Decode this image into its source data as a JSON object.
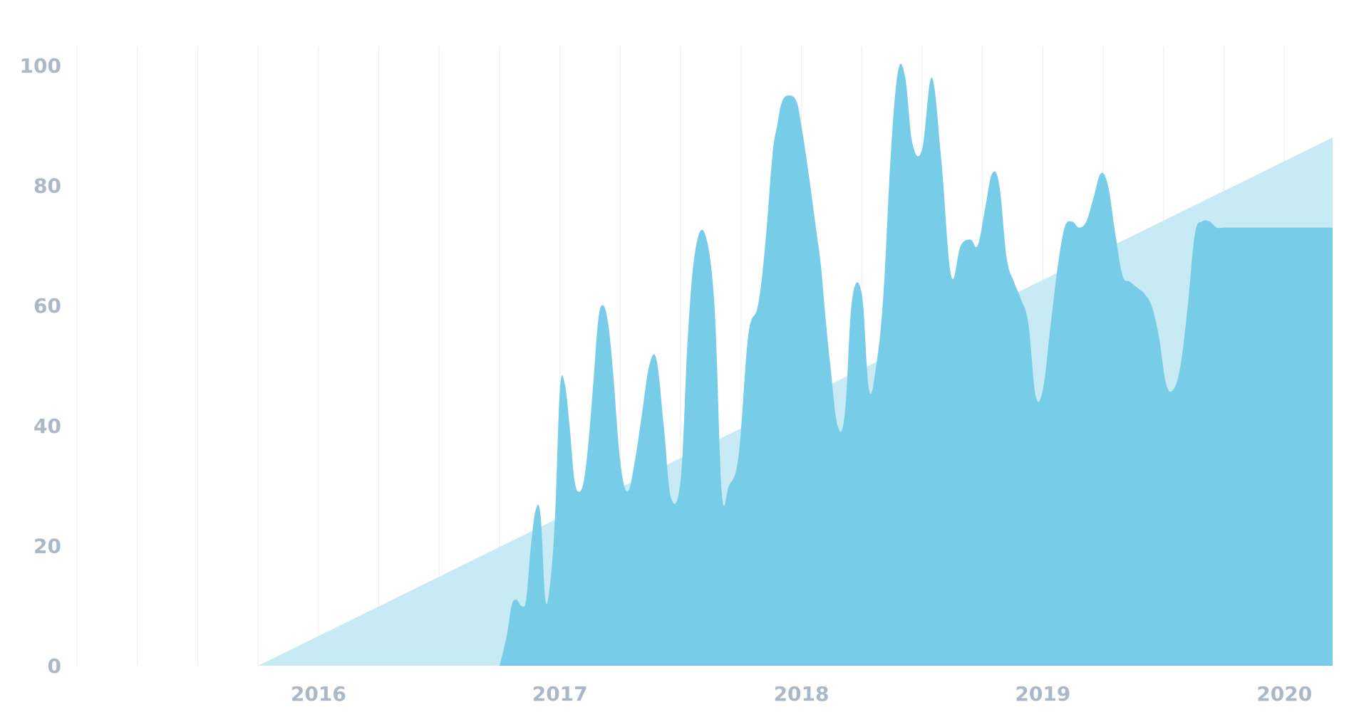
{
  "chart_data": {
    "type": "area",
    "title": "",
    "xlabel": "",
    "ylabel": "",
    "ylim": [
      0,
      100
    ],
    "y_ticks": [
      "0",
      "20",
      "40",
      "60",
      "80",
      "100"
    ],
    "x_ticks": [
      "2016",
      "2017",
      "2018",
      "2019",
      "2020"
    ],
    "grid": "vertical lines",
    "legend": "none",
    "colors": {
      "series_main": "#77cde8",
      "series_trend": "#c8eaf4",
      "grid": "#eeeeee",
      "tick_text": "#aab8c8"
    },
    "series": [
      {
        "x": [
          2015.75,
          2020.2
        ],
        "values": [
          0,
          88
        ]
      },
      {
        "x": [
          2016.75,
          2016.78,
          2016.8,
          2016.82,
          2016.84,
          2016.86,
          2016.88,
          2016.9,
          2016.92,
          2016.94,
          2016.96,
          2016.98,
          2017.0,
          2017.02,
          2017.04,
          2017.06,
          2017.08,
          2017.1,
          2017.12,
          2017.14,
          2017.16,
          2017.18,
          2017.2,
          2017.22,
          2017.25,
          2017.28,
          2017.31,
          2017.34,
          2017.37,
          2017.4,
          2017.43,
          2017.46,
          2017.5,
          2017.53,
          2017.56,
          2017.6,
          2017.64,
          2017.67,
          2017.7,
          2017.74,
          2017.78,
          2017.82,
          2017.85,
          2017.88,
          2017.9,
          2017.92,
          2017.95,
          2017.98,
          2018.0,
          2018.03,
          2018.06,
          2018.08,
          2018.1,
          2018.12,
          2018.15,
          2018.18,
          2018.21,
          2018.25,
          2018.28,
          2018.31,
          2018.34,
          2018.37,
          2018.4,
          2018.43,
          2018.46,
          2018.5,
          2018.54,
          2018.58,
          2018.62,
          2018.66,
          2018.7,
          2018.73,
          2018.76,
          2018.79,
          2018.82,
          2018.85,
          2018.88,
          2018.91,
          2018.94,
          2018.97,
          2019.0,
          2019.03,
          2019.06,
          2019.09,
          2019.12,
          2019.15,
          2019.18,
          2019.21,
          2019.24,
          2019.27,
          2019.3,
          2019.33,
          2019.36,
          2019.39,
          2019.42,
          2019.45,
          2019.48,
          2019.51,
          2019.54,
          2019.57,
          2019.6,
          2019.63,
          2019.66,
          2019.69,
          2019.72,
          2019.75,
          2019.79,
          2019.83,
          2019.87,
          2019.91,
          2019.94,
          2019.97,
          2020.0,
          2020.03,
          2020.06,
          2020.1,
          2020.15,
          2020.2
        ],
        "values": [
          0,
          5,
          10,
          11,
          10,
          11,
          20,
          26,
          25,
          11,
          14,
          25,
          46,
          47,
          40,
          31,
          29,
          31,
          38,
          48,
          58,
          60,
          57,
          49,
          34,
          29,
          34,
          42,
          50,
          51,
          40,
          28,
          31,
          55,
          69,
          72,
          60,
          29,
          30,
          35,
          55,
          60,
          70,
          85,
          90,
          94,
          95,
          94,
          90,
          82,
          73,
          67,
          58,
          50,
          40,
          42,
          61,
          62,
          46,
          50,
          62,
          85,
          99,
          98,
          87,
          86,
          98,
          84,
          65,
          70,
          71,
          70,
          76,
          82,
          80,
          68,
          64,
          61,
          57,
          45,
          46,
          56,
          66,
          73,
          74,
          73,
          74,
          78,
          82,
          80,
          72,
          65,
          64,
          63,
          62,
          60,
          55,
          47,
          46,
          50,
          60,
          72,
          74,
          74,
          73,
          73,
          73,
          73,
          73,
          73,
          73,
          73,
          73,
          73,
          73,
          73,
          73,
          73
        ]
      }
    ]
  }
}
